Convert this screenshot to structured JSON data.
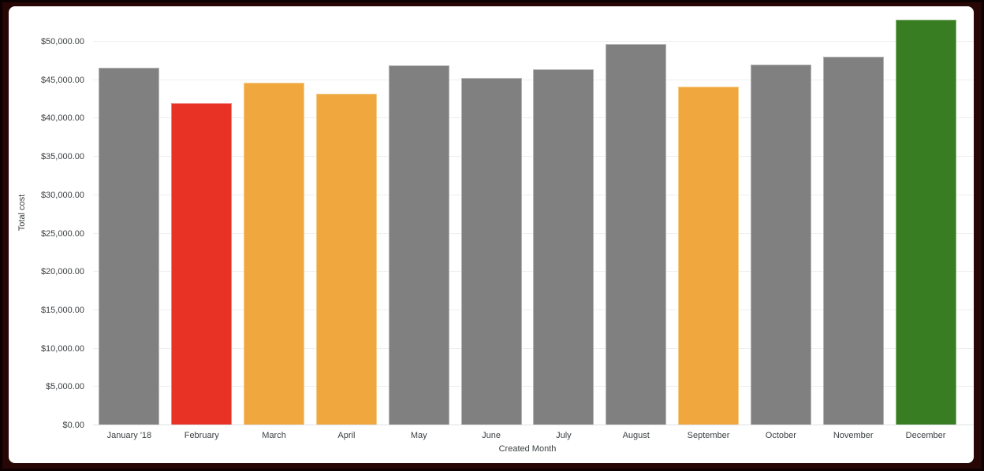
{
  "chart_data": {
    "type": "bar",
    "title": "",
    "xlabel": "Created Month",
    "ylabel": "Total cost",
    "categories": [
      "January '18",
      "February",
      "March",
      "April",
      "May",
      "June",
      "July",
      "August",
      "September",
      "October",
      "November",
      "December"
    ],
    "values": [
      46600,
      42000,
      44700,
      43200,
      46900,
      45300,
      46400,
      49700,
      44100,
      47000,
      48000,
      52900
    ],
    "bar_colors": [
      "#808080",
      "#E93226",
      "#F0A83E",
      "#F0A83E",
      "#808080",
      "#808080",
      "#808080",
      "#808080",
      "#F0A83E",
      "#808080",
      "#808080",
      "#387D21"
    ],
    "palette": {
      "gray": "#808080",
      "red": "#E93226",
      "orange": "#F0A83E",
      "green": "#387D21"
    },
    "y_ticks": [
      {
        "value": 0,
        "label": "$0.00"
      },
      {
        "value": 5000,
        "label": "$5,000.00"
      },
      {
        "value": 10000,
        "label": "$10,000.00"
      },
      {
        "value": 15000,
        "label": "$15,000.00"
      },
      {
        "value": 20000,
        "label": "$20,000.00"
      },
      {
        "value": 25000,
        "label": "$25,000.00"
      },
      {
        "value": 30000,
        "label": "$30,000.00"
      },
      {
        "value": 35000,
        "label": "$35,000.00"
      },
      {
        "value": 40000,
        "label": "$40,000.00"
      },
      {
        "value": 45000,
        "label": "$45,000.00"
      },
      {
        "value": 50000,
        "label": "$50,000.00"
      }
    ],
    "ylim": [
      0,
      53000
    ],
    "grid": true,
    "legend": "none",
    "frame_color": "#270606"
  }
}
